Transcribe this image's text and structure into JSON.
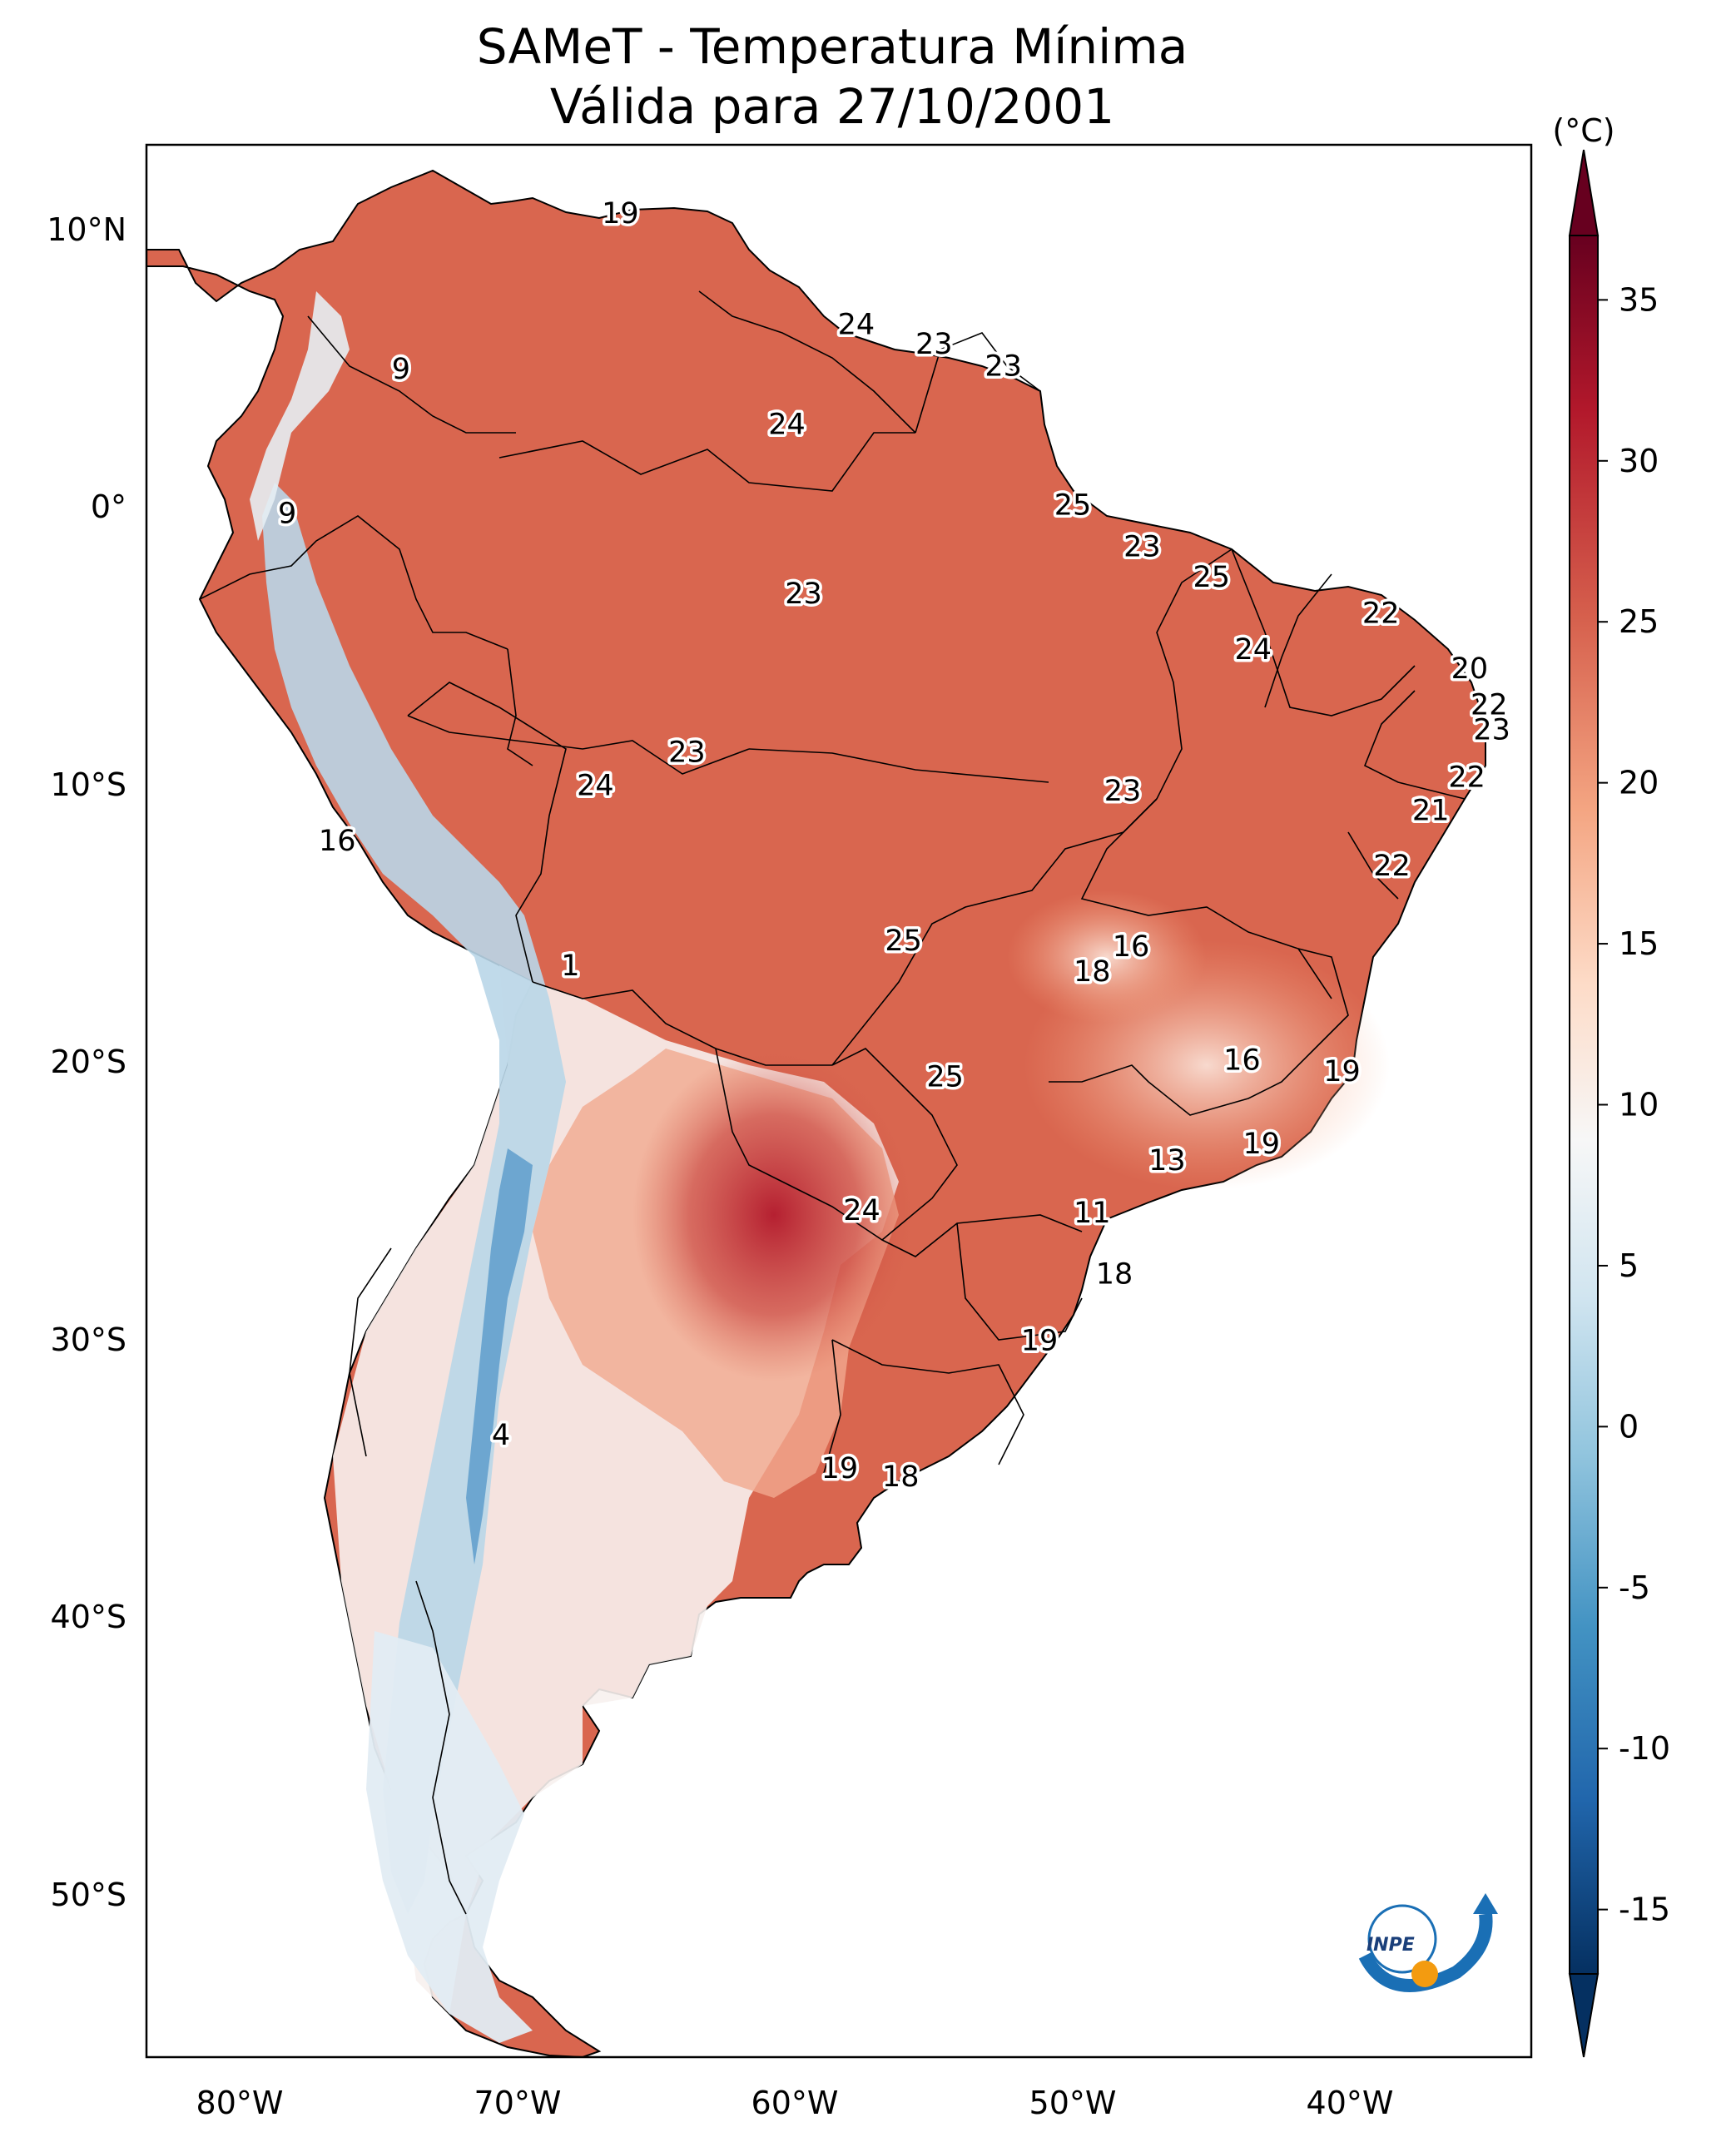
{
  "title": {
    "line1": "SAMeT - Temperatura Mínima",
    "line2": "Válida para 27/10/2001"
  },
  "colorbar": {
    "unit_label": "(°C)",
    "ticks": [
      "35",
      "30",
      "25",
      "20",
      "15",
      "10",
      "5",
      "0",
      "-5",
      "-10",
      "-15"
    ],
    "colors": [
      "#67001f",
      "#b2182b",
      "#d6604d",
      "#f4a582",
      "#fddbc7",
      "#f7f7f7",
      "#d1e5f0",
      "#92c5de",
      "#4393c3",
      "#2166ac",
      "#053061"
    ]
  },
  "axes": {
    "lat_labels": [
      "10°N",
      "0°",
      "10°S",
      "20°S",
      "30°S",
      "40°S",
      "50°S"
    ],
    "lon_labels": [
      "80°W",
      "70°W",
      "60°W",
      "50°W",
      "40°W"
    ]
  },
  "logo": {
    "text": "INPE",
    "icon": "inpe-logo-icon"
  },
  "station_labels": [
    {
      "value": "19",
      "lon": -66.3,
      "lat": 10.6
    },
    {
      "value": "24",
      "lon": -57.8,
      "lat": 6.6
    },
    {
      "value": "23",
      "lon": -55.0,
      "lat": 5.9
    },
    {
      "value": "23",
      "lon": -52.5,
      "lat": 5.1
    },
    {
      "value": "9",
      "lon": -74.2,
      "lat": 5.0
    },
    {
      "value": "24",
      "lon": -60.3,
      "lat": 3.0
    },
    {
      "value": "25",
      "lon": -50.0,
      "lat": 0.1
    },
    {
      "value": "9",
      "lon": -78.3,
      "lat": -0.2
    },
    {
      "value": "23",
      "lon": -47.5,
      "lat": -1.4
    },
    {
      "value": "25",
      "lon": -45.0,
      "lat": -2.5
    },
    {
      "value": "23",
      "lon": -59.7,
      "lat": -3.1
    },
    {
      "value": "22",
      "lon": -38.9,
      "lat": -3.8
    },
    {
      "value": "24",
      "lon": -43.5,
      "lat": -5.1
    },
    {
      "value": "20",
      "lon": -35.7,
      "lat": -5.8
    },
    {
      "value": "22",
      "lon": -35.0,
      "lat": -7.1
    },
    {
      "value": "23",
      "lon": -34.9,
      "lat": -8.0
    },
    {
      "value": "23",
      "lon": -63.9,
      "lat": -8.8
    },
    {
      "value": "22",
      "lon": -35.8,
      "lat": -9.7
    },
    {
      "value": "24",
      "lon": -67.2,
      "lat": -10.0
    },
    {
      "value": "23",
      "lon": -48.2,
      "lat": -10.2
    },
    {
      "value": "21",
      "lon": -37.1,
      "lat": -10.9
    },
    {
      "value": "16",
      "lon": -76.5,
      "lat": -12.0
    },
    {
      "value": "22",
      "lon": -38.5,
      "lat": -12.9
    },
    {
      "value": "25",
      "lon": -56.1,
      "lat": -15.6
    },
    {
      "value": "16",
      "lon": -47.9,
      "lat": -15.8
    },
    {
      "value": "18",
      "lon": -49.3,
      "lat": -16.7
    },
    {
      "value": "1",
      "lon": -68.1,
      "lat": -16.5
    },
    {
      "value": "16",
      "lon": -43.9,
      "lat": -19.9
    },
    {
      "value": "19",
      "lon": -40.3,
      "lat": -20.3
    },
    {
      "value": "25",
      "lon": -54.6,
      "lat": -20.5
    },
    {
      "value": "19",
      "lon": -43.2,
      "lat": -22.9
    },
    {
      "value": "13",
      "lon": -46.6,
      "lat": -23.5
    },
    {
      "value": "24",
      "lon": -57.6,
      "lat": -25.3
    },
    {
      "value": "11",
      "lon": -49.3,
      "lat": -25.4
    },
    {
      "value": "18",
      "lon": -48.5,
      "lat": -27.6
    },
    {
      "value": "19",
      "lon": -51.2,
      "lat": -30.0
    },
    {
      "value": "4",
      "lon": -70.6,
      "lat": -33.4
    },
    {
      "value": "19",
      "lon": -58.4,
      "lat": -34.6
    },
    {
      "value": "18",
      "lon": -56.2,
      "lat": -34.9
    }
  ]
}
